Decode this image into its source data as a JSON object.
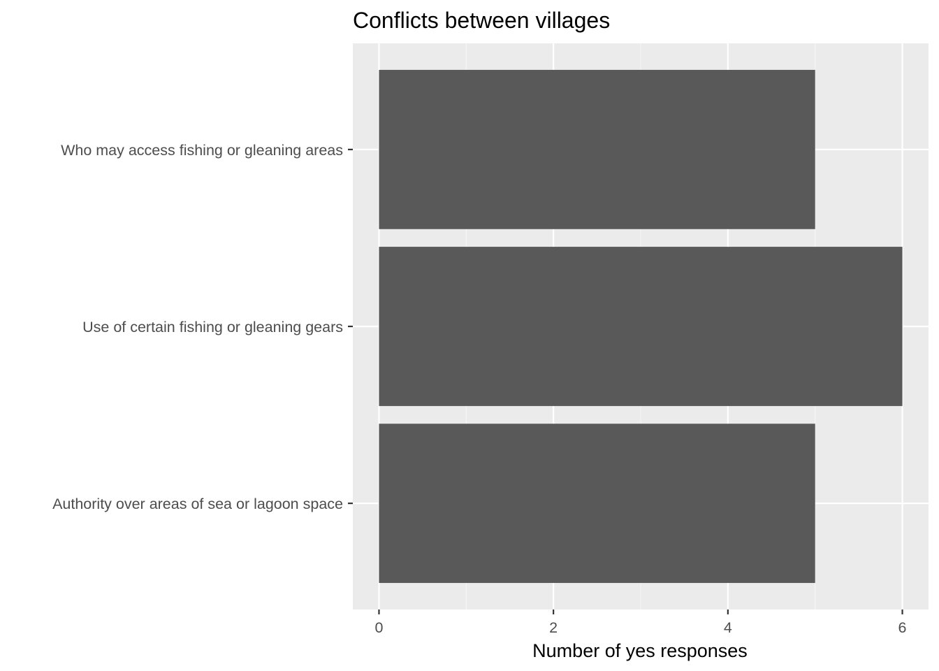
{
  "chart_data": {
    "type": "bar",
    "orientation": "horizontal",
    "title": "Conflicts between villages",
    "xlabel": "Number of yes responses",
    "ylabel": "",
    "categories": [
      "Who may access fishing or gleaning areas",
      "Use of certain fishing or gleaning gears",
      "Authority over areas of sea or lagoon space"
    ],
    "values": [
      5,
      6,
      5
    ],
    "xlim": [
      -0.3,
      6.3
    ],
    "xticks": [
      0,
      2,
      4,
      6
    ],
    "grid": true,
    "legend": "none",
    "colors": {
      "bar": "#595959",
      "panel": "#ebebeb",
      "grid_major": "#ffffff",
      "grid_minor": "#f5f5f5",
      "tick_text": "#4d4d4d",
      "axis_text": "#000000"
    }
  }
}
